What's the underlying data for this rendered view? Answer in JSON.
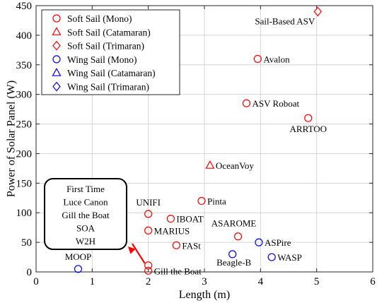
{
  "chart_data": {
    "type": "scatter",
    "xlabel": "Length (m)",
    "ylabel": "Power of Solar Panel (W)",
    "xlim": [
      0,
      6
    ],
    "ylim": [
      0,
      450
    ],
    "x_ticks": [
      "0",
      "1",
      "2",
      "3",
      "4",
      "5",
      "6"
    ],
    "y_ticks": [
      "0",
      "50",
      "100",
      "150",
      "200",
      "250",
      "300",
      "350",
      "400",
      "450"
    ],
    "grid": true,
    "legend_position": "top-left",
    "colors": {
      "soft": "#ff0000",
      "wing": "#0000ff"
    },
    "series": [
      {
        "name": "Soft Sail (Mono)",
        "category": "soft",
        "marker": "circle",
        "points": [
          {
            "x": 3.95,
            "y": 360,
            "label": "Avalon"
          },
          {
            "x": 3.75,
            "y": 285,
            "label": "ASV Roboat"
          },
          {
            "x": 4.85,
            "y": 260,
            "label": "ARRTOO"
          },
          {
            "x": 2.95,
            "y": 120,
            "label": "Pinta"
          },
          {
            "x": 2.0,
            "y": 98,
            "label": "UNIFI"
          },
          {
            "x": 2.4,
            "y": 90,
            "label": "IBOAT"
          },
          {
            "x": 2.0,
            "y": 70,
            "label": "MARIUS"
          },
          {
            "x": 3.6,
            "y": 60,
            "label": "ASAROME"
          },
          {
            "x": 2.5,
            "y": 45,
            "label": "FASt"
          },
          {
            "x": 2.0,
            "y": 11,
            "label": ""
          },
          {
            "x": 2.0,
            "y": 2,
            "label": "Gill the Boat"
          }
        ]
      },
      {
        "name": "Soft Sail (Catamaran)",
        "category": "soft",
        "marker": "triangle",
        "points": [
          {
            "x": 3.1,
            "y": 180,
            "label": "OceanVoy"
          }
        ]
      },
      {
        "name": "Soft Sail (Trimaran)",
        "category": "soft",
        "marker": "diamond",
        "points": [
          {
            "x": 5.02,
            "y": 440,
            "label": "Sail-Based ASV"
          }
        ]
      },
      {
        "name": "Wing Sail (Mono)",
        "category": "wing",
        "marker": "circle",
        "points": [
          {
            "x": 0.75,
            "y": 5,
            "label": "MOOP"
          },
          {
            "x": 3.97,
            "y": 50,
            "label": "ASPire"
          },
          {
            "x": 3.5,
            "y": 30,
            "label": "Beagle-B"
          },
          {
            "x": 4.2,
            "y": 25,
            "label": "WASP"
          }
        ]
      },
      {
        "name": "Wing Sail (Catamaran)",
        "category": "wing",
        "marker": "triangle",
        "points": []
      },
      {
        "name": "Wing Sail (Trimaran)",
        "category": "wing",
        "marker": "diamond",
        "points": []
      }
    ],
    "annotation_box": {
      "lines": [
        "First Time",
        "Luce Canon",
        "Gill the Boat",
        "SOA",
        "W2H"
      ],
      "arrow_color": "#ff0000",
      "arrow_target": {
        "x": 2.0,
        "y": 11
      }
    }
  }
}
